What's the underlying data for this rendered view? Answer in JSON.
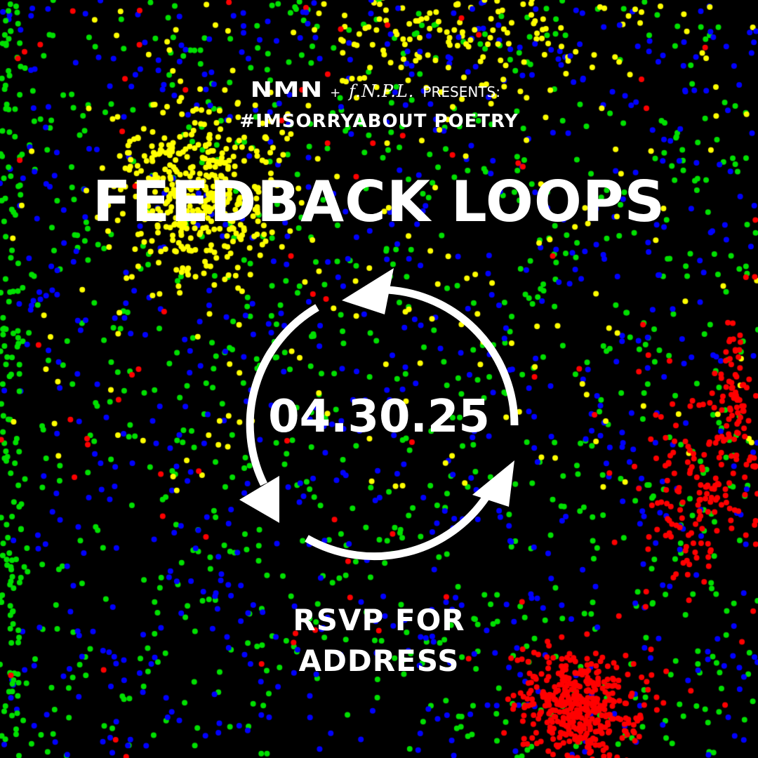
{
  "header": {
    "brand_nmn": "NMN",
    "plus": "+",
    "brand_fnpl": "f.N.P.L.",
    "presents": "PRESENTS:",
    "hashtag": "#IMSORRYABOUT POETRY"
  },
  "event": {
    "title": "FEEDBACK LOOPS",
    "date": "04.30.25",
    "rsvp_line1": "RSVP FOR",
    "rsvp_line2": "ADDRESS"
  },
  "icons": {
    "loop": "cycle-arrows-icon"
  },
  "colors": {
    "background": "#000000",
    "text": "#ffffff",
    "dot_green": "#00e000",
    "dot_blue": "#0000ff",
    "dot_yellow": "#ffff00",
    "dot_red": "#ff0000"
  }
}
